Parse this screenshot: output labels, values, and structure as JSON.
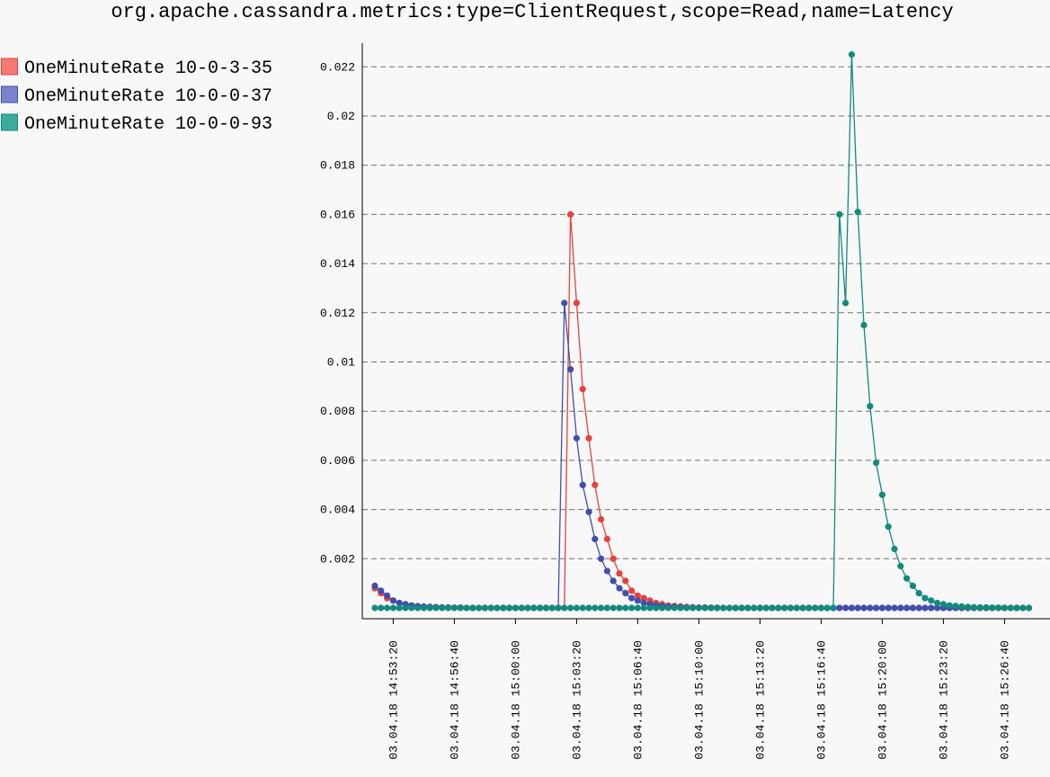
{
  "chart_data": {
    "type": "line",
    "title": "org.apache.cassandra.metrics:type=ClientRequest,scope=Read,name=Latency",
    "xlabel": "",
    "ylabel": "",
    "ylim": [
      0,
      0.0229
    ],
    "grid": "horizontal dashed",
    "legend_position": "top-left",
    "y_ticks": [
      0.002,
      0.004,
      0.006,
      0.008,
      0.01,
      0.012,
      0.014,
      0.016,
      0.018,
      0.02,
      0.022
    ],
    "y_tick_labels": [
      "0.002",
      "0.004",
      "0.006",
      "0.008",
      "0.01",
      "0.012",
      "0.014",
      "0.016",
      "0.018",
      "0.02",
      "0.022"
    ],
    "x_tick_labels": [
      "03.04.18 14:53:20",
      "03.04.18 14:56:40",
      "03.04.18 15:00:00",
      "03.04.18 15:03:20",
      "03.04.18 15:06:40",
      "03.04.18 15:10:00",
      "03.04.18 15:13:20",
      "03.04.18 15:16:40",
      "03.04.18 15:20:00",
      "03.04.18 15:23:20",
      "03.04.18 15:26:40"
    ],
    "x_start": "03.04.18 14:52:20",
    "x_end": "03.04.18 15:28:00",
    "x_step_seconds": 20,
    "series": [
      {
        "name": "OneMinuteRate 10-0-3-35",
        "color": "#e8413c",
        "fill": "#f57a70",
        "values": [
          0.0008,
          0.0006,
          0.0004,
          0.0003,
          0.0002,
          0.00015,
          0.0001,
          7e-05,
          5e-05,
          4e-05,
          3e-05,
          2e-05,
          2e-05,
          1e-05,
          1e-05,
          0,
          0,
          0,
          0,
          0,
          0,
          0,
          0,
          0,
          0,
          0,
          0,
          0,
          0,
          0,
          0,
          0,
          0.016,
          0.0124,
          0.0089,
          0.0069,
          0.005,
          0.0036,
          0.0028,
          0.002,
          0.0014,
          0.0011,
          0.0007,
          0.0005,
          0.0004,
          0.0003,
          0.0002,
          0.00015,
          0.0001,
          8e-05,
          6e-05,
          4e-05,
          3e-05,
          2e-05,
          2e-05,
          1e-05,
          1e-05,
          0,
          0,
          0,
          0,
          0,
          0,
          0,
          0,
          0,
          0,
          0,
          0,
          0,
          0,
          0,
          0,
          0,
          0,
          0,
          0,
          0,
          0,
          0,
          0,
          0,
          0,
          0,
          0,
          0,
          0,
          0,
          0,
          0,
          0,
          0,
          0,
          0,
          0,
          0,
          0,
          0,
          0,
          0,
          0,
          0,
          0,
          0,
          0,
          0,
          0
        ]
      },
      {
        "name": "OneMinuteRate 10-0-0-37",
        "color": "#3f4fb0",
        "fill": "#7a84cc",
        "values": [
          0.0009,
          0.0007,
          0.0005,
          0.0003,
          0.0002,
          0.00015,
          0.0001,
          7e-05,
          5e-05,
          4e-05,
          3e-05,
          2e-05,
          2e-05,
          1e-05,
          1e-05,
          0,
          0,
          0,
          0,
          0,
          0,
          0,
          0,
          0,
          0,
          0,
          0,
          0,
          0,
          0,
          0,
          0.0124,
          0.0097,
          0.0069,
          0.005,
          0.0039,
          0.0028,
          0.002,
          0.0015,
          0.0011,
          0.0008,
          0.0006,
          0.0004,
          0.0003,
          0.0002,
          0.00015,
          0.0001,
          8e-05,
          6e-05,
          4e-05,
          3e-05,
          2e-05,
          2e-05,
          1e-05,
          1e-05,
          0,
          0,
          0,
          0,
          0,
          0,
          0,
          0,
          0,
          0,
          0,
          0,
          0,
          0,
          0,
          0,
          0,
          0,
          0,
          0,
          0,
          0,
          0,
          0,
          0,
          0,
          0,
          0,
          0,
          0,
          0,
          0,
          0,
          0,
          0,
          0,
          0,
          0,
          0,
          0,
          0,
          0,
          0,
          0,
          0,
          0,
          0,
          0,
          0,
          0,
          0,
          0,
          0
        ]
      },
      {
        "name": "OneMinuteRate 10-0-0-93",
        "color": "#138a7e",
        "fill": "#3cab9c",
        "values": [
          0,
          0,
          0,
          0,
          0,
          0,
          0,
          0,
          0,
          0,
          0,
          0,
          0,
          0,
          0,
          0,
          0,
          0,
          0,
          0,
          0,
          0,
          0,
          0,
          0,
          0,
          0,
          0,
          0,
          0,
          0,
          0,
          0,
          0,
          0,
          0,
          0,
          0,
          0,
          0,
          0,
          0,
          0,
          0,
          0,
          0,
          0,
          0,
          0,
          0,
          0,
          0,
          0,
          0,
          0,
          0,
          0,
          0,
          0,
          0,
          0,
          0,
          0,
          0,
          0,
          0,
          0,
          0,
          0,
          0,
          0,
          0,
          0,
          0,
          0,
          0,
          0.016,
          0.0124,
          0.0225,
          0.0161,
          0.0115,
          0.0082,
          0.0059,
          0.0046,
          0.0033,
          0.0024,
          0.0017,
          0.0012,
          0.0009,
          0.0006,
          0.0004,
          0.0003,
          0.0002,
          0.00015,
          0.0001,
          8e-05,
          6e-05,
          4e-05,
          3e-05,
          2e-05,
          2e-05,
          1e-05,
          1e-05,
          0,
          0,
          0,
          0,
          0
        ]
      }
    ]
  }
}
